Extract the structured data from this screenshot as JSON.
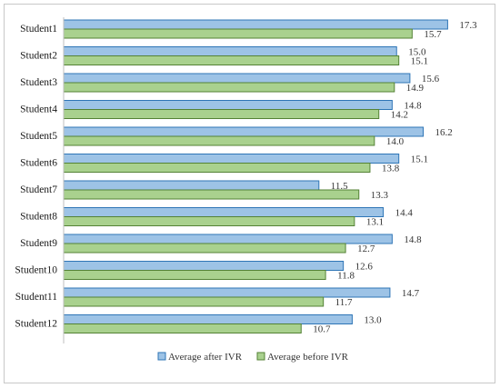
{
  "chart_data": {
    "type": "bar",
    "orientation": "horizontal",
    "categories": [
      "Student1",
      "Student2",
      "Student3",
      "Student4",
      "Student5",
      "Student6",
      "Student7",
      "Student8",
      "Student9",
      "Student10",
      "Student11",
      "Student12"
    ],
    "series": [
      {
        "name": "Average after IVR",
        "color": "#9dc3e6",
        "stroke": "#2e75b6",
        "values": [
          17.3,
          15.0,
          15.6,
          14.8,
          16.2,
          15.1,
          11.5,
          14.4,
          14.8,
          12.6,
          14.7,
          13.0
        ]
      },
      {
        "name": "Average before IVR",
        "color": "#a9d18e",
        "stroke": "#548235",
        "values": [
          15.7,
          15.1,
          14.9,
          14.2,
          14.0,
          13.8,
          13.3,
          13.1,
          12.7,
          11.8,
          11.7,
          10.7
        ]
      }
    ],
    "value_labels": {
      "after": [
        "17.3",
        "15.0",
        "15.6",
        "14.8",
        "16.2",
        "15.1",
        "11.5",
        "14.4",
        "14.8",
        "12.6",
        "14.7",
        "13.0"
      ],
      "before": [
        "15.7",
        "15.1",
        "14.9",
        "14.2",
        "14.0",
        "13.8",
        "13.3",
        "13.1",
        "12.7",
        "11.8",
        "11.7",
        "10.7"
      ]
    },
    "xlim": [
      0,
      18
    ],
    "grid": false,
    "legend_position": "bottom"
  }
}
